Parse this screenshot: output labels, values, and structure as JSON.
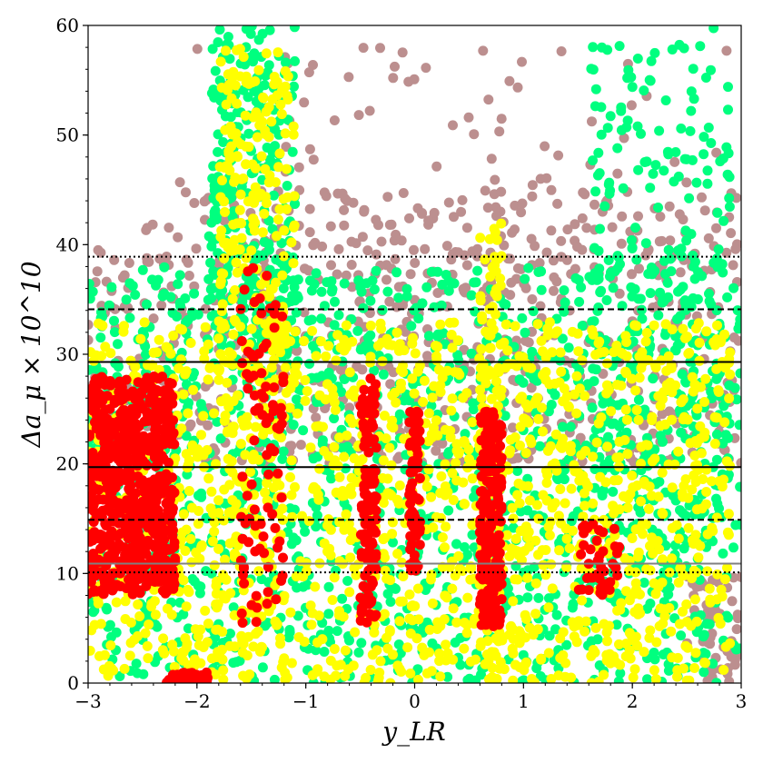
{
  "chart_data": {
    "type": "scatter",
    "title": "",
    "xlabel": "y_LR",
    "ylabel": "Δa_μ × 10^10",
    "xlim": [
      -3,
      3
    ],
    "ylim": [
      0,
      60
    ],
    "x_ticks": [
      -3,
      -2,
      -1,
      0,
      1,
      2,
      3
    ],
    "x_tick_labels": [
      "−3",
      "−2",
      "−1",
      "0",
      "1",
      "2",
      "3"
    ],
    "y_ticks": [
      0,
      10,
      20,
      30,
      40,
      50,
      60
    ],
    "y_tick_labels": [
      "0",
      "10",
      "20",
      "30",
      "40",
      "50",
      "60"
    ],
    "grid": false,
    "reference_lines": [
      {
        "y": 19.7,
        "style": "solid",
        "color": "#000000"
      },
      {
        "y": 29.3,
        "style": "solid",
        "color": "#000000"
      },
      {
        "y": 14.9,
        "style": "dashed",
        "color": "#000000"
      },
      {
        "y": 34.1,
        "style": "dashed",
        "color": "#000000"
      },
      {
        "y": 10.1,
        "style": "dotted",
        "color": "#000000"
      },
      {
        "y": 38.9,
        "style": "dotted",
        "color": "#000000"
      },
      {
        "y": 10.9,
        "style": "solid",
        "color": "#808080"
      }
    ],
    "series": [
      {
        "color": "#bc8f8f",
        "regions": [
          {
            "xmin": -3.0,
            "xmax": 3.0,
            "ymin": 20,
            "ymax": 45,
            "n": 700
          },
          {
            "xmin": -2.2,
            "xmax": 2.9,
            "ymin": 36,
            "ymax": 58,
            "n": 90
          },
          {
            "xmin": 2.5,
            "xmax": 3.0,
            "ymin": 0,
            "ymax": 10,
            "n": 60
          }
        ]
      },
      {
        "color": "#00ff7f",
        "regions": [
          {
            "xmin": -3.0,
            "xmax": 3.0,
            "ymin": 0,
            "ymax": 38,
            "n": 1400
          },
          {
            "xmin": -1.9,
            "xmax": -1.1,
            "ymin": 30,
            "ymax": 60,
            "n": 260
          },
          {
            "xmin": 1.6,
            "xmax": 2.9,
            "ymin": 10,
            "ymax": 60,
            "n": 260
          }
        ]
      },
      {
        "color": "#ffff00",
        "regions": [
          {
            "xmin": -3.0,
            "xmax": 2.9,
            "ymin": 0,
            "ymax": 33,
            "n": 1500
          },
          {
            "xmin": -1.8,
            "xmax": -1.1,
            "ymin": 25,
            "ymax": 58,
            "n": 220
          },
          {
            "xmin": 0.6,
            "xmax": 0.8,
            "ymin": 0,
            "ymax": 42,
            "n": 120
          }
        ]
      },
      {
        "color": "#ff0000",
        "regions": [
          {
            "xmin": -3.0,
            "xmax": -2.2,
            "ymin": 8,
            "ymax": 28,
            "n": 700
          },
          {
            "xmin": -2.3,
            "xmax": -1.9,
            "ymin": 0,
            "ymax": 1,
            "n": 40
          },
          {
            "xmin": -1.6,
            "xmax": -1.2,
            "ymin": 5,
            "ymax": 38,
            "n": 90
          },
          {
            "xmin": -0.5,
            "xmax": -0.35,
            "ymin": 5,
            "ymax": 28,
            "n": 120
          },
          {
            "xmin": -0.05,
            "xmax": 0.05,
            "ymin": 10,
            "ymax": 25,
            "n": 80
          },
          {
            "xmin": 0.6,
            "xmax": 0.8,
            "ymin": 5,
            "ymax": 25,
            "n": 220
          },
          {
            "xmin": 1.5,
            "xmax": 1.9,
            "ymin": 8,
            "ymax": 15,
            "n": 40
          }
        ]
      }
    ]
  }
}
